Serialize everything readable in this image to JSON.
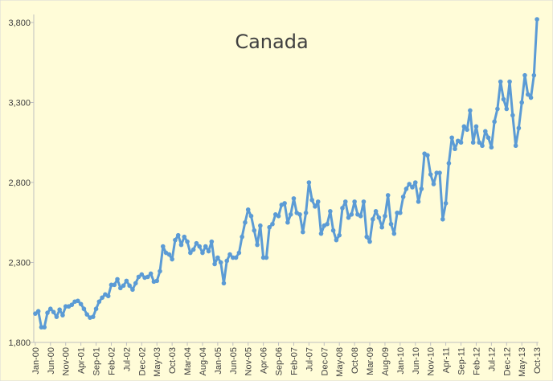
{
  "chart_data": {
    "type": "line",
    "title": "Canada",
    "xlabel": "",
    "ylabel": "",
    "ylim": [
      1800,
      3800
    ],
    "yticks": [
      1800,
      2300,
      2800,
      3300,
      3800
    ],
    "ytick_labels": [
      "1,800",
      "2,300",
      "2,800",
      "3,300",
      "3,800"
    ],
    "grid": false,
    "legend": "none",
    "line_color": "#5B9BD5",
    "background_color": "#FFFCD8",
    "x_tick_labels": [
      {
        "i": 0,
        "label": "Jan-00"
      },
      {
        "i": 5,
        "label": "Jun-00"
      },
      {
        "i": 10,
        "label": "Nov-00"
      },
      {
        "i": 15,
        "label": "Apr-01"
      },
      {
        "i": 20,
        "label": "Sep-01"
      },
      {
        "i": 25,
        "label": "Feb-02"
      },
      {
        "i": 30,
        "label": "Jul-02"
      },
      {
        "i": 35,
        "label": "Dec-02"
      },
      {
        "i": 40,
        "label": "May-03"
      },
      {
        "i": 45,
        "label": "Oct-03"
      },
      {
        "i": 50,
        "label": "Mar-04"
      },
      {
        "i": 55,
        "label": "Aug-04"
      },
      {
        "i": 60,
        "label": "Jan-05"
      },
      {
        "i": 65,
        "label": "Jun-05"
      },
      {
        "i": 70,
        "label": "Nov-05"
      },
      {
        "i": 75,
        "label": "Apr-06"
      },
      {
        "i": 80,
        "label": "Sep-06"
      },
      {
        "i": 85,
        "label": "Feb-07"
      },
      {
        "i": 90,
        "label": "Jul-07"
      },
      {
        "i": 95,
        "label": "Dec-07"
      },
      {
        "i": 100,
        "label": "May-08"
      },
      {
        "i": 105,
        "label": "Oct-08"
      },
      {
        "i": 110,
        "label": "Mar-09"
      },
      {
        "i": 115,
        "label": "Aug-09"
      },
      {
        "i": 120,
        "label": "Jan-10"
      },
      {
        "i": 125,
        "label": "Jun-10"
      },
      {
        "i": 130,
        "label": "Nov-10"
      },
      {
        "i": 135,
        "label": "Apr-11"
      },
      {
        "i": 140,
        "label": "Sep-11"
      },
      {
        "i": 145,
        "label": "Feb-12"
      },
      {
        "i": 150,
        "label": "Jul-12"
      },
      {
        "i": 155,
        "label": "Dec-12"
      },
      {
        "i": 160,
        "label": "May-13"
      },
      {
        "i": 165,
        "label": "Oct-13"
      }
    ],
    "series": [
      {
        "values": [
          1980,
          1995,
          1895,
          1895,
          1985,
          2010,
          1990,
          1960,
          2005,
          1970,
          2025,
          2025,
          2035,
          2055,
          2060,
          2040,
          2010,
          1975,
          1955,
          1960,
          2010,
          2055,
          2080,
          2100,
          2090,
          2160,
          2160,
          2195,
          2140,
          2155,
          2185,
          2155,
          2130,
          2170,
          2210,
          2225,
          2205,
          2210,
          2230,
          2180,
          2185,
          2245,
          2400,
          2360,
          2350,
          2320,
          2440,
          2470,
          2410,
          2460,
          2430,
          2360,
          2380,
          2420,
          2400,
          2360,
          2400,
          2370,
          2430,
          2290,
          2330,
          2300,
          2170,
          2310,
          2350,
          2330,
          2330,
          2360,
          2460,
          2550,
          2630,
          2590,
          2500,
          2410,
          2530,
          2330,
          2330,
          2520,
          2540,
          2600,
          2590,
          2660,
          2670,
          2550,
          2600,
          2700,
          2610,
          2600,
          2490,
          2610,
          2800,
          2690,
          2650,
          2680,
          2480,
          2530,
          2540,
          2620,
          2500,
          2440,
          2470,
          2640,
          2680,
          2580,
          2600,
          2680,
          2600,
          2590,
          2680,
          2460,
          2430,
          2570,
          2620,
          2580,
          2520,
          2590,
          2720,
          2540,
          2480,
          2610,
          2610,
          2710,
          2760,
          2790,
          2770,
          2800,
          2680,
          2760,
          2980,
          2970,
          2850,
          2790,
          2860,
          2860,
          2570,
          2670,
          2920,
          3080,
          3010,
          3060,
          3050,
          3150,
          3130,
          3250,
          3050,
          3150,
          3050,
          3030,
          3120,
          3080,
          3020,
          3180,
          3260,
          3430,
          3320,
          3260,
          3430,
          3220,
          3030,
          3140,
          3300,
          3470,
          3350,
          3330,
          3470,
          3820
        ]
      }
    ]
  }
}
